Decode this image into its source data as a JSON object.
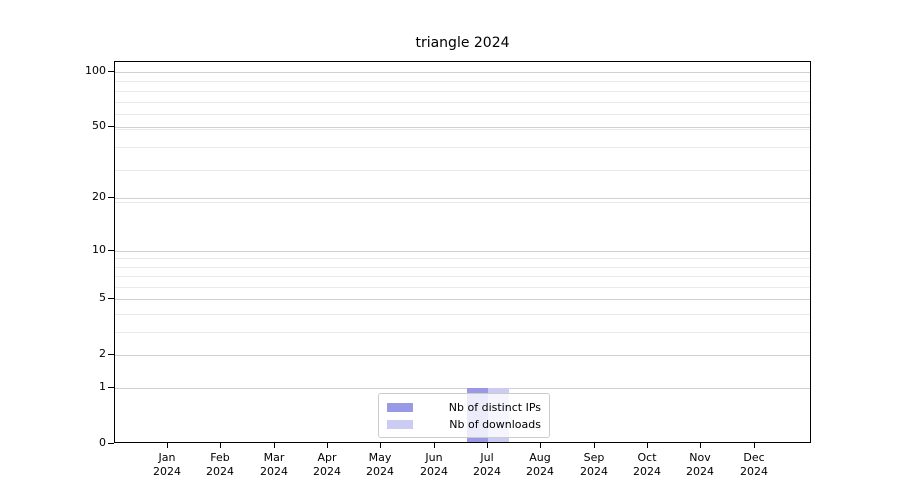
{
  "title": "triangle 2024",
  "chart_data": {
    "type": "bar",
    "title": "triangle 2024",
    "categories": [
      "Jan 2024",
      "Feb 2024",
      "Mar 2024",
      "Apr 2024",
      "May 2024",
      "Jun 2024",
      "Jul 2024",
      "Aug 2024",
      "Sep 2024",
      "Oct 2024",
      "Nov 2024",
      "Dec 2024"
    ],
    "series": [
      {
        "name": "Nb of distinct IPs",
        "color": "#9999e6",
        "values": [
          0,
          0,
          0,
          0,
          0,
          0,
          1,
          0,
          0,
          0,
          0,
          0
        ]
      },
      {
        "name": "Nb of downloads",
        "color": "#ccccf2",
        "values": [
          0,
          0,
          0,
          0,
          0,
          0,
          1,
          0,
          0,
          0,
          0,
          0
        ]
      }
    ],
    "xlabel": "",
    "ylabel": "",
    "y_axis": {
      "scale": "log1p",
      "ticks": [
        0,
        1,
        2,
        5,
        10,
        20,
        50,
        100
      ],
      "range": [
        0,
        115
      ]
    },
    "grid": {
      "horizontal": true,
      "vertical": false,
      "which": "major+minor"
    },
    "legend": {
      "position": "lower center"
    }
  },
  "colors": {
    "grid_major": "#d0d0d0",
    "grid_minor": "#eaeaea",
    "spine": "#000000",
    "text": "#000000"
  }
}
